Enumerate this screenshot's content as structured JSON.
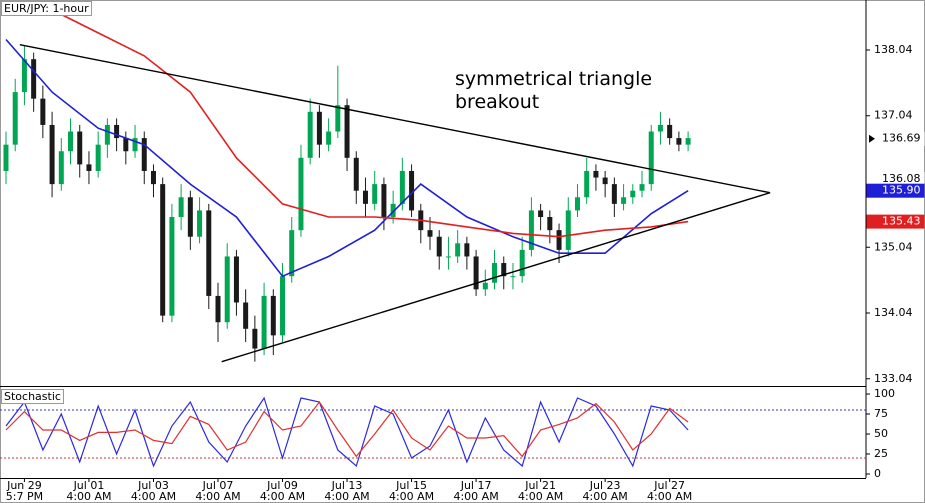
{
  "chart_data": [
    {
      "type": "candlestick",
      "title": "EUR/JPY: 1-hour",
      "annotation": "symmetrical triangle breakout",
      "xlim": [
        -0.65,
        93.3
      ],
      "ylim": [
        132.93,
        138.8
      ],
      "yticks": [
        133.04,
        134.04,
        135.04,
        136.04,
        137.04,
        138.04
      ],
      "grid": false,
      "up_color": "#00a651",
      "down_color": "#1a1a1a",
      "xticks": [
        {
          "value": 2,
          "label": "Jun 29"
        },
        {
          "value": 9,
          "label": "Jul 01"
        },
        {
          "value": 16,
          "label": "Jul 03"
        },
        {
          "value": 23,
          "label": "Jul 07"
        },
        {
          "value": 30,
          "label": "Jul 09"
        },
        {
          "value": 37,
          "label": "Jul 13"
        },
        {
          "value": 44,
          "label": "Jul 15"
        },
        {
          "value": 51,
          "label": "Jul 17"
        },
        {
          "value": 58,
          "label": "Jul 21"
        },
        {
          "value": 65,
          "label": "Jul 23"
        },
        {
          "value": 72,
          "label": "Jul 27"
        }
      ],
      "xticks2": [
        {
          "value": 2,
          "label": "5:7 PM"
        },
        {
          "value": 9,
          "label": "4:00 AM"
        },
        {
          "value": 16,
          "label": "4:00 AM"
        },
        {
          "value": 23,
          "label": "4:00 AM"
        },
        {
          "value": 30,
          "label": "4:00 AM"
        },
        {
          "value": 37,
          "label": "4:00 AM"
        },
        {
          "value": 44,
          "label": "4:00 AM"
        },
        {
          "value": 51,
          "label": "4:00 AM"
        },
        {
          "value": 58,
          "label": "4:00 AM"
        },
        {
          "value": 65,
          "label": "4:00 AM"
        },
        {
          "value": 72,
          "label": "4:00 AM"
        }
      ],
      "ohlc": [
        [
          136.2,
          136.8,
          136.0,
          136.6
        ],
        [
          136.6,
          137.6,
          136.5,
          137.4
        ],
        [
          137.4,
          138.1,
          137.2,
          137.9
        ],
        [
          137.9,
          138.0,
          137.1,
          137.3
        ],
        [
          137.3,
          137.5,
          136.7,
          136.9
        ],
        [
          136.9,
          137.1,
          135.8,
          136.0
        ],
        [
          136.0,
          136.7,
          135.9,
          136.5
        ],
        [
          136.5,
          137.0,
          136.3,
          136.8
        ],
        [
          136.8,
          136.9,
          136.1,
          136.3
        ],
        [
          136.3,
          136.5,
          136.0,
          136.2
        ],
        [
          136.2,
          136.8,
          136.1,
          136.6
        ],
        [
          136.6,
          137.0,
          136.4,
          136.9
        ],
        [
          136.9,
          137.0,
          136.5,
          136.7
        ],
        [
          136.7,
          136.8,
          136.3,
          136.5
        ],
        [
          136.5,
          136.9,
          136.4,
          136.7
        ],
        [
          136.7,
          136.8,
          136.0,
          136.2
        ],
        [
          136.2,
          136.3,
          135.8,
          136.0
        ],
        [
          136.0,
          136.1,
          133.9,
          134.0
        ],
        [
          134.0,
          135.7,
          133.9,
          135.5
        ],
        [
          135.5,
          136.0,
          135.3,
          135.8
        ],
        [
          135.8,
          135.9,
          135.0,
          135.2
        ],
        [
          135.2,
          135.8,
          135.1,
          135.6
        ],
        [
          135.6,
          135.7,
          134.1,
          134.3
        ],
        [
          134.3,
          134.5,
          133.6,
          133.9
        ],
        [
          133.9,
          135.1,
          133.8,
          134.9
        ],
        [
          134.9,
          135.0,
          134.0,
          134.2
        ],
        [
          134.2,
          134.4,
          133.6,
          133.8
        ],
        [
          133.8,
          134.0,
          133.3,
          133.5
        ],
        [
          133.5,
          134.5,
          133.4,
          134.3
        ],
        [
          134.3,
          134.4,
          133.4,
          133.7
        ],
        [
          133.7,
          134.8,
          133.6,
          134.6
        ],
        [
          134.6,
          135.5,
          134.5,
          135.3
        ],
        [
          135.3,
          136.6,
          135.2,
          136.4
        ],
        [
          136.4,
          137.3,
          136.3,
          137.1
        ],
        [
          137.1,
          137.2,
          136.4,
          136.6
        ],
        [
          136.6,
          137.0,
          136.5,
          136.8
        ],
        [
          136.8,
          137.8,
          136.7,
          137.2
        ],
        [
          137.2,
          137.3,
          136.2,
          136.4
        ],
        [
          136.4,
          136.5,
          135.7,
          135.9
        ],
        [
          135.9,
          136.1,
          135.5,
          135.7
        ],
        [
          135.7,
          136.2,
          135.6,
          136.0
        ],
        [
          136.0,
          136.1,
          135.3,
          135.5
        ],
        [
          135.5,
          135.9,
          135.4,
          135.7
        ],
        [
          135.7,
          136.4,
          135.6,
          136.2
        ],
        [
          136.2,
          136.3,
          135.5,
          135.6
        ],
        [
          135.6,
          135.7,
          135.1,
          135.3
        ],
        [
          135.3,
          135.5,
          135.0,
          135.2
        ],
        [
          135.2,
          135.3,
          134.7,
          134.9
        ],
        [
          134.9,
          135.2,
          134.7,
          134.9
        ],
        [
          134.9,
          135.3,
          134.8,
          135.1
        ],
        [
          135.1,
          135.2,
          134.7,
          134.9
        ],
        [
          134.9,
          135.0,
          134.3,
          134.4
        ],
        [
          134.4,
          134.7,
          134.3,
          134.5
        ],
        [
          134.5,
          135.0,
          134.4,
          134.8
        ],
        [
          134.8,
          134.9,
          134.4,
          134.6
        ],
        [
          134.6,
          134.8,
          134.4,
          134.6
        ],
        [
          134.6,
          135.2,
          134.5,
          135.0
        ],
        [
          135.0,
          135.8,
          134.9,
          135.6
        ],
        [
          135.6,
          135.7,
          135.3,
          135.5
        ],
        [
          135.5,
          135.6,
          135.1,
          135.3
        ],
        [
          135.3,
          135.4,
          134.8,
          135.0
        ],
        [
          135.0,
          135.8,
          134.9,
          135.6
        ],
        [
          135.6,
          136.0,
          135.5,
          135.8
        ],
        [
          135.8,
          136.4,
          135.7,
          136.2
        ],
        [
          136.2,
          136.3,
          135.9,
          136.1
        ],
        [
          136.1,
          136.2,
          135.8,
          136.0
        ],
        [
          136.0,
          136.1,
          135.5,
          135.7
        ],
        [
          135.7,
          136.0,
          135.6,
          135.8
        ],
        [
          135.8,
          136.0,
          135.7,
          135.9
        ],
        [
          135.9,
          136.2,
          135.8,
          136.0
        ],
        [
          136.0,
          136.9,
          135.9,
          136.8
        ],
        [
          136.8,
          137.1,
          136.6,
          136.9
        ],
        [
          136.9,
          137.0,
          136.6,
          136.7
        ],
        [
          136.7,
          136.8,
          136.5,
          136.6
        ],
        [
          136.6,
          136.8,
          136.5,
          136.7
        ]
      ],
      "series": [
        {
          "color": "#1f1fd6",
          "x": [
            0,
            5,
            10,
            15,
            20,
            25,
            30,
            35,
            40,
            45,
            50,
            55,
            60,
            65,
            70,
            74
          ],
          "values": [
            138.2,
            137.4,
            136.85,
            136.6,
            136.0,
            135.5,
            134.6,
            134.9,
            135.3,
            136.0,
            135.5,
            135.2,
            134.95,
            134.95,
            135.55,
            135.9
          ]
        },
        {
          "color": "#e02020",
          "x": [
            5,
            10,
            15,
            20,
            25,
            30,
            35,
            40,
            45,
            50,
            55,
            60,
            65,
            70,
            74
          ],
          "values": [
            138.65,
            138.3,
            137.95,
            137.4,
            136.4,
            135.7,
            135.5,
            135.5,
            135.45,
            135.35,
            135.25,
            135.2,
            135.3,
            135.35,
            135.43
          ]
        }
      ],
      "trendlines": [
        {
          "color": "#000000",
          "x": [
            1.5,
            82.9
          ],
          "y": [
            138.12,
            135.87
          ]
        },
        {
          "color": "#000000",
          "x": [
            23.4,
            82.9
          ],
          "y": [
            133.3,
            135.87
          ]
        }
      ],
      "markers": [
        {
          "value": 136.69,
          "color": "#ffffff",
          "text_color": "#000000"
        },
        {
          "value": 136.08,
          "color": "#ffffff",
          "text_color": "#000000"
        },
        {
          "value": 135.9,
          "value_label": "135.90",
          "color": "#1f1fd6",
          "text_color": "#ffffff"
        },
        {
          "value": 135.43,
          "color": "#e02020",
          "text_color": "#ffffff"
        }
      ]
    },
    {
      "type": "line",
      "title": "Stochastic",
      "xlim": [
        -0.65,
        93.3
      ],
      "ylim": [
        -5,
        108.75
      ],
      "yticks": [
        0,
        25,
        50,
        75,
        100
      ],
      "levels": [
        {
          "value": 80,
          "color": "#3333cc"
        },
        {
          "value": 20,
          "color": "#cc3333"
        }
      ],
      "series": [
        {
          "color": "#2a2ae0",
          "x": [
            0,
            2,
            4,
            6,
            8,
            10,
            12,
            14,
            16,
            18,
            20,
            22,
            24,
            26,
            28,
            30,
            32,
            34,
            36,
            38,
            40,
            42,
            44,
            46,
            48,
            50,
            52,
            54,
            56,
            58,
            60,
            62,
            64,
            66,
            68,
            70,
            72,
            74
          ],
          "values": [
            60,
            90,
            30,
            75,
            15,
            85,
            25,
            80,
            10,
            60,
            90,
            40,
            15,
            60,
            95,
            20,
            95,
            90,
            30,
            10,
            85,
            75,
            20,
            35,
            80,
            15,
            70,
            30,
            10,
            90,
            40,
            95,
            85,
            50,
            10,
            85,
            80,
            55
          ]
        },
        {
          "color": "#e03030",
          "x": [
            0,
            2,
            4,
            6,
            8,
            10,
            12,
            14,
            16,
            18,
            20,
            22,
            24,
            26,
            28,
            30,
            32,
            34,
            36,
            38,
            40,
            42,
            44,
            46,
            48,
            50,
            52,
            54,
            56,
            58,
            60,
            62,
            64,
            66,
            68,
            70,
            72,
            74
          ],
          "values": [
            55,
            78,
            55,
            55,
            42,
            52,
            52,
            55,
            42,
            38,
            72,
            62,
            30,
            40,
            78,
            55,
            60,
            90,
            55,
            22,
            50,
            80,
            45,
            30,
            60,
            45,
            45,
            48,
            22,
            55,
            62,
            70,
            88,
            65,
            30,
            50,
            82,
            65
          ]
        }
      ]
    }
  ]
}
